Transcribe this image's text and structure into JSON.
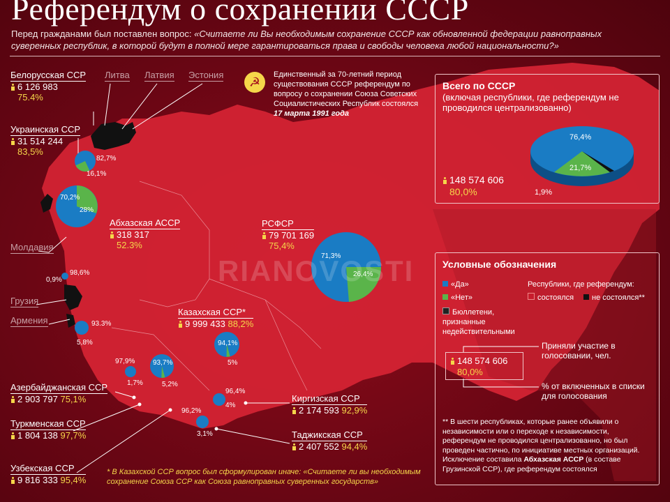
{
  "title": "Референдум о сохранении СССР",
  "question": {
    "prefix": "Перед гражданами был поставлен вопрос:",
    "text": "«Считаете ли Вы необходимым сохранение СССР как обновленной федерации равноправных суверенных республик, в которой будут в полной мере гарантироваться права и свободы человека любой национальности?»"
  },
  "intro": {
    "text": "Единственный за 70-летний период существования СССР референдум по вопросу о сохранении Союза Советских Социалистических Республик состоялся",
    "date": "17 марта 1991 года"
  },
  "not_held": [
    "Литва",
    "Латвия",
    "Эстония",
    "Молдавия",
    "Грузия",
    "Армения"
  ],
  "republics": {
    "belarus": {
      "name": "Белорусская ССР",
      "voters": "6 126 983",
      "turnout": "75.4%",
      "yes": "82,7%",
      "no": "16,1%"
    },
    "ukraine": {
      "name": "Украинская ССР",
      "voters": "31 514 244",
      "turnout": "83,5%",
      "yes": "70,2%",
      "no": "28%"
    },
    "abkhazia": {
      "name": "Абхазская АССР",
      "voters": "318 317",
      "turnout": "52.3%",
      "yes": "98,6%",
      "no": "0,9%"
    },
    "rsfsr": {
      "name": "РСФСР",
      "voters": "79 701 169",
      "turnout": "75,4%",
      "yes": "71,3%",
      "no": "26,4%"
    },
    "kazakh": {
      "name": "Казахская ССР*",
      "voters": "9 999 433",
      "turnout": "88,2%",
      "yes": "94,1%",
      "no": "5%"
    },
    "azerbaijan": {
      "name": "Азербайджанская ССР",
      "voters": "2 903 797",
      "turnout": "75,1%",
      "yes": "93.3%",
      "no": "5,8%"
    },
    "turkmen": {
      "name": "Туркменская ССР",
      "voters": "1 804 138",
      "turnout": "97,7%",
      "yes": "97,9%",
      "no": "1,7%"
    },
    "uzbek": {
      "name": "Узбекская ССР",
      "voters": "9 816 333",
      "turnout": "95,4%",
      "yes": "93,7%",
      "no": "5,2%"
    },
    "kyrgyz": {
      "name": "Киргизская ССР",
      "voters": "2 174 593",
      "turnout": "92,9%",
      "yes": "96,4%",
      "no": "4%"
    },
    "tajik": {
      "name": "Таджикская ССР",
      "voters": "2 407 552",
      "turnout": "94,4%",
      "yes": "96,2%",
      "no": "3,1%"
    }
  },
  "total": {
    "title": "Всего по СССР",
    "subtitle": "(включая республики, где референдум не проводился централизованно)",
    "voters": "148 574 606",
    "turnout": "80,0%",
    "yes": "76,4%",
    "no": "21,7%",
    "invalid": "1,9%"
  },
  "legend": {
    "title": "Условные обозначения",
    "yes": "«Да»",
    "no": "«Нет»",
    "invalid": "Бюллетени, признанные недействительными",
    "republics_label": "Республики, где референдум:",
    "held": "состоялся",
    "not_held": "не состоялся**",
    "sample_voters": "148 574 606",
    "sample_turnout": "80,0%",
    "voters_desc": "Приняли участие в голосовании, чел.",
    "turnout_desc": "% от включенных в списки для голосования",
    "footnote": "** В шести республиках, которые ранее объявили о независимости или о переходе к независимости, референдум не проводился централизованно, но был проведен частично, по инициативе местных организаций. Исключение составила",
    "footnote_bold": "Абхазская АССР",
    "footnote_end": "(в составе Грузинской ССР), где референдум состоялся"
  },
  "kazakh_note": "* В Казахской ССР вопрос был сформулирован иначе: «Считаете ли вы необходимым сохранение Союза ССР как Союза равноправных суверенных государств»",
  "watermark": "RIANOVOSTI",
  "colors": {
    "yes": "#1a7cc4",
    "no": "#5ab44a",
    "invalid": "#222222",
    "held": "#c81c2c",
    "not_held": "#111111",
    "accent": "#f5d64a"
  }
}
